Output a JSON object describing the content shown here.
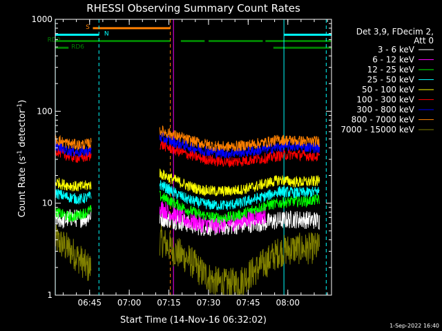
{
  "chart_data": {
    "type": "line",
    "title": "RHESSI Observing Summary Count Rates",
    "xlabel": "Start Time (14-Nov-16 06:32:02)",
    "ylabel_main": "Count Rate (s",
    "ylabel_sup1": "-1",
    "ylabel_mid": " detector",
    "ylabel_sup2": "-1",
    "ylabel_end": ")",
    "y_scale": "log",
    "ylim": [
      1,
      1000
    ],
    "x_unit": "minutes after 06:32:02",
    "xlim": [
      -0.03,
      104.5
    ],
    "x_ticks": [
      {
        "label": "06:45",
        "value": 12.97
      },
      {
        "label": "07:00",
        "value": 27.97
      },
      {
        "label": "07:15",
        "value": 42.97
      },
      {
        "label": "07:30",
        "value": 57.97
      },
      {
        "label": "07:45",
        "value": 72.97
      },
      {
        "label": "08:00",
        "value": 87.97
      }
    ],
    "y_ticks": [
      {
        "label": "1",
        "value": 1
      },
      {
        "label": "10",
        "value": 10
      },
      {
        "label": "100",
        "value": 100
      },
      {
        "label": "1000",
        "value": 1000
      }
    ],
    "legend_header": [
      "Det 3,9, FDecim 2,",
      "Att 0"
    ],
    "legend_placement": "right",
    "timestamp": "1-Sep-2022 16:40",
    "series": [
      {
        "name": "3 - 6 keV",
        "color": "#ffffff",
        "segments": [
          {
            "x": [
              0,
              3,
              6,
              9,
              12,
              13.6
            ],
            "y": [
              7,
              6.5,
              7,
              6.8,
              7,
              7.5
            ]
          },
          {
            "x": [
              39.5,
              45,
              50,
              55,
              60,
              65,
              70,
              75,
              80,
              85,
              90,
              95,
              100
            ],
            "y": [
              7,
              6.5,
              6,
              5.5,
              5.5,
              5.6,
              5.8,
              6,
              6.2,
              6.5,
              6.7,
              6.6,
              6.5
            ]
          }
        ]
      },
      {
        "name": "6 - 12 keV",
        "color": "#ff00ff",
        "segments": [
          {
            "x": [
              39.5,
              45,
              50,
              55,
              60,
              65,
              70,
              75,
              80
            ],
            "y": [
              9,
              7.5,
              6.5,
              6,
              5.8,
              6,
              6.5,
              7,
              7.5
            ]
          }
        ]
      },
      {
        "name": "12 - 25 keV",
        "color": "#00ff00",
        "segments": [
          {
            "x": [
              0,
              3,
              6,
              9,
              12,
              13.6
            ],
            "y": [
              8,
              7.5,
              7,
              7.5,
              8,
              8.5
            ]
          },
          {
            "x": [
              39.5,
              45,
              50,
              55,
              60,
              65,
              70,
              75,
              80,
              85,
              90,
              95,
              100
            ],
            "y": [
              12,
              10,
              8.5,
              7.5,
              7,
              7,
              7.5,
              8.5,
              9.5,
              10,
              10.5,
              10.5,
              11
            ]
          }
        ]
      },
      {
        "name": "25 - 50 keV",
        "color": "#00ffff",
        "segments": [
          {
            "x": [
              0,
              3,
              6,
              9,
              12,
              13.6
            ],
            "y": [
              13,
              12,
              11.5,
              11,
              11.5,
              12
            ]
          },
          {
            "x": [
              39.5,
              45,
              50,
              55,
              60,
              65,
              70,
              75,
              80,
              85,
              90,
              95,
              100
            ],
            "y": [
              16,
              13,
              11,
              10,
              9.5,
              9.5,
              10,
              11,
              12,
              13.5,
              13,
              13,
              13.5
            ]
          }
        ]
      },
      {
        "name": "50 - 100 keV",
        "color": "#ffff00",
        "segments": [
          {
            "x": [
              0,
              3,
              6,
              9,
              12,
              13.6
            ],
            "y": [
              17,
              16,
              15.5,
              15,
              15.5,
              16
            ]
          },
          {
            "x": [
              39.5,
              45,
              50,
              55,
              60,
              65,
              70,
              75,
              80,
              85,
              90,
              95,
              100
            ],
            "y": [
              21,
              18,
              15.5,
              14,
              13.5,
              13.5,
              14,
              15,
              16.5,
              18,
              17,
              17,
              17.5
            ]
          }
        ]
      },
      {
        "name": "100 - 300 keV",
        "color": "#ff0000",
        "segments": [
          {
            "x": [
              0,
              3,
              6,
              9,
              12,
              13.6
            ],
            "y": [
              38,
              34,
              32,
              31,
              32,
              33
            ]
          },
          {
            "x": [
              39.5,
              45,
              50,
              55,
              60,
              65,
              70,
              75,
              80,
              85,
              90,
              95,
              100
            ],
            "y": [
              44,
              38,
              34,
              31,
              29,
              28,
              28.5,
              30,
              31,
              33,
              34,
              33,
              32
            ]
          }
        ]
      },
      {
        "name": "300 - 800 keV",
        "color": "#0000ff",
        "segments": [
          {
            "x": [
              0,
              3,
              6,
              9,
              12,
              13.6
            ],
            "y": [
              43,
              39,
              37,
              36,
              37,
              38
            ]
          },
          {
            "x": [
              39.5,
              45,
              50,
              55,
              60,
              65,
              70,
              75,
              80,
              85,
              90,
              95,
              100
            ],
            "y": [
              52,
              46,
              42,
              38,
              36,
              35,
              36,
              37,
              39,
              41,
              42,
              41,
              40
            ]
          }
        ]
      },
      {
        "name": "800 - 7000 keV",
        "color": "#ff8000",
        "segments": [
          {
            "x": [
              0,
              3,
              6,
              9,
              12,
              13.6
            ],
            "y": [
              50,
              46,
              44,
              43,
              44,
              45
            ]
          },
          {
            "x": [
              39.5,
              45,
              50,
              55,
              60,
              65,
              70,
              75,
              80,
              85,
              90,
              95,
              100
            ],
            "y": [
              62,
              55,
              49,
              45,
              42,
              41,
              42,
              44,
              46,
              49,
              48,
              47,
              47
            ]
          }
        ]
      },
      {
        "name": "7000 - 15000 keV",
        "color": "#808000",
        "segments": [
          {
            "x": [
              0,
              3,
              6,
              9,
              12,
              13.6
            ],
            "y": [
              4,
              3.5,
              3,
              2.5,
              2,
              2
            ]
          },
          {
            "x": [
              39.5,
              45,
              50,
              55,
              60,
              65,
              70,
              75,
              80,
              85,
              90,
              95,
              100
            ],
            "y": [
              4,
              3,
              2.5,
              1.8,
              1.4,
              1.3,
              1.4,
              1.8,
              2.3,
              3,
              3.2,
              3.2,
              3.3
            ]
          }
        ]
      }
    ],
    "flags": [
      {
        "label": "S",
        "color": "#ff8000",
        "level": 800,
        "segments": [
          [
            14.2,
            43.5
          ]
        ],
        "label_at": 11.5
      },
      {
        "label": "N",
        "color": "#00ffff",
        "level": 680,
        "segments": [
          [
            0,
            16.5
          ],
          [
            86.5,
            104.5
          ]
        ],
        "label_at": 18.5
      },
      {
        "label": "RD0",
        "color": "#008000",
        "level": 580,
        "segments": [
          [
            0,
            43.5
          ],
          [
            47.5,
            56.5
          ],
          [
            58,
            78.5
          ],
          [
            79.5,
            104.5
          ]
        ],
        "label_at": -3
      },
      {
        "label": "RD6",
        "color": "#008000",
        "level": 490,
        "segments": [
          [
            0,
            5
          ],
          [
            82.5,
            104.5
          ]
        ],
        "label_at": 6
      }
    ],
    "vlines": [
      {
        "x": 0,
        "color": "#00ffff",
        "style": "solid"
      },
      {
        "x": 16.5,
        "color": "#00ffff",
        "style": "dash"
      },
      {
        "x": 43.5,
        "color": "#ff8000",
        "style": "dash"
      },
      {
        "x": 44.7,
        "color": "#ff00ff",
        "style": "solid"
      },
      {
        "x": 86.5,
        "color": "#00ffff",
        "style": "solid"
      },
      {
        "x": 102.5,
        "color": "#00ffff",
        "style": "dash"
      }
    ]
  }
}
